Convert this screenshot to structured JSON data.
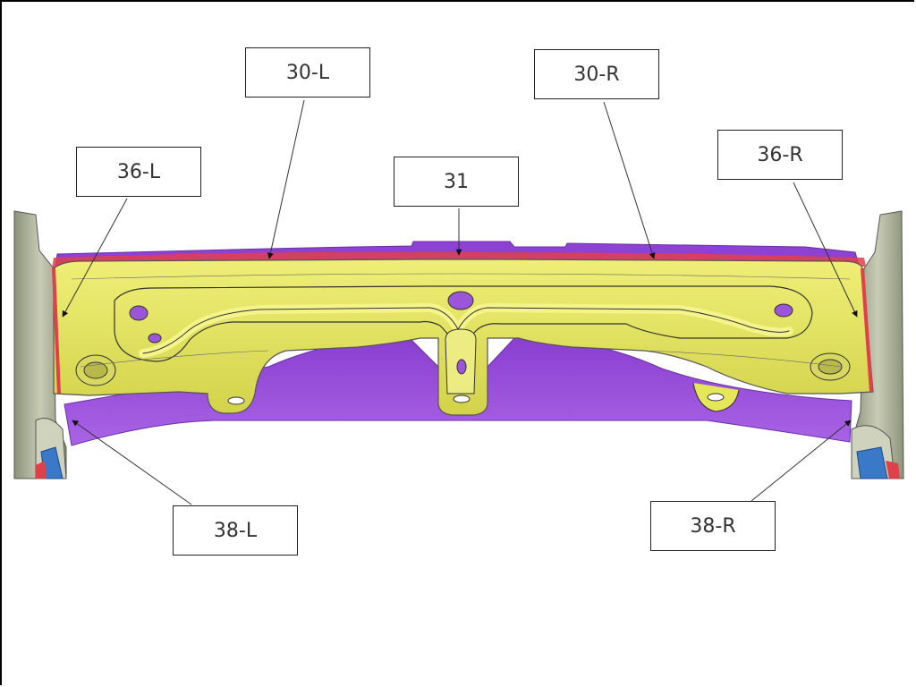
{
  "callouts": {
    "c30L": "30-L",
    "c30R": "30-R",
    "c36L": "36-L",
    "c36R": "36-R",
    "c31": "31",
    "c38L": "38-L",
    "c38R": "38-R"
  },
  "colors": {
    "bracket_yellow": "#e6e65a",
    "member_purple": "#9b55d8",
    "edge_red": "#e0404a",
    "rail_grey": "#9ea38a",
    "rail_blue": "#3a78c8",
    "leader_line": "#333333"
  }
}
